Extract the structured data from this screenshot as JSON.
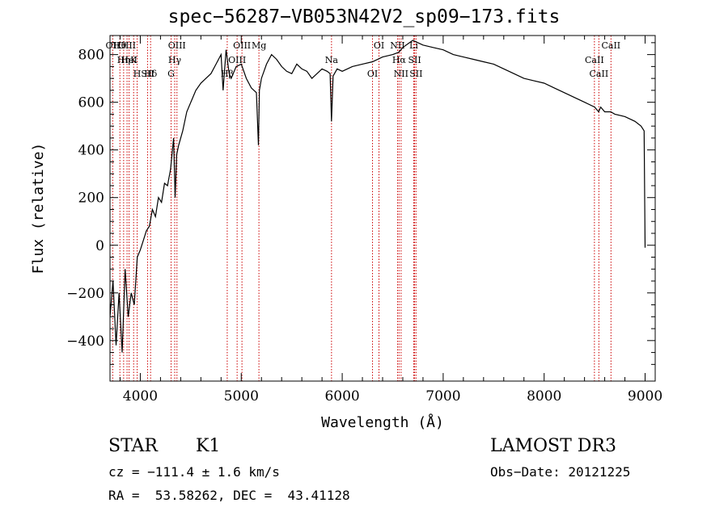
{
  "chart_data": {
    "type": "line",
    "title": "spec−56287−VB053N42V2_sp09−173.fits",
    "xlabel": "Wavelength (Å)",
    "ylabel": "Flux (relative)",
    "xlim": [
      3700,
      9100
    ],
    "ylim": [
      -570,
      880
    ],
    "grid": false,
    "x_ticks": [
      "4000",
      "5000",
      "6000",
      "7000",
      "8000",
      "9000"
    ],
    "x_tick_values": [
      4000,
      5000,
      6000,
      7000,
      8000,
      9000
    ],
    "y_ticks": [
      "−400",
      "−200",
      "0",
      "200",
      "400",
      "600",
      "800"
    ],
    "y_tick_values": [
      -400,
      -200,
      0,
      200,
      400,
      600,
      800
    ],
    "series": [
      {
        "color": "#000000",
        "x": [
          3700,
          3730,
          3760,
          3790,
          3820,
          3850,
          3880,
          3910,
          3940,
          3970,
          4000,
          4030,
          4060,
          4090,
          4120,
          4150,
          4180,
          4210,
          4240,
          4270,
          4300,
          4330,
          4345,
          4360,
          4380,
          4420,
          4460,
          4500,
          4550,
          4600,
          4650,
          4700,
          4750,
          4800,
          4820,
          4850,
          4880,
          4900,
          4950,
          5000,
          5050,
          5100,
          5150,
          5170,
          5180,
          5200,
          5250,
          5300,
          5350,
          5400,
          5450,
          5500,
          5550,
          5600,
          5650,
          5700,
          5750,
          5800,
          5850,
          5880,
          5894,
          5910,
          5950,
          6000,
          6100,
          6200,
          6300,
          6400,
          6500,
          6560,
          6600,
          6700,
          6800,
          6900,
          7000,
          7100,
          7200,
          7300,
          7400,
          7500,
          7600,
          7700,
          7800,
          7900,
          8000,
          8100,
          8200,
          8300,
          8400,
          8500,
          8540,
          8560,
          8600,
          8660,
          8700,
          8800,
          8900,
          8960,
          8990,
          9000
        ],
        "y": [
          -300,
          -150,
          -420,
          -200,
          -450,
          -100,
          -300,
          -200,
          -250,
          -50,
          -20,
          20,
          60,
          80,
          150,
          120,
          200,
          180,
          260,
          250,
          320,
          450,
          200,
          380,
          420,
          480,
          560,
          600,
          650,
          680,
          700,
          720,
          760,
          800,
          650,
          820,
          720,
          700,
          750,
          760,
          700,
          660,
          640,
          420,
          650,
          700,
          760,
          800,
          780,
          750,
          730,
          720,
          760,
          740,
          730,
          700,
          720,
          740,
          730,
          720,
          520,
          710,
          740,
          730,
          750,
          760,
          770,
          790,
          800,
          810,
          830,
          860,
          840,
          830,
          820,
          800,
          790,
          780,
          770,
          760,
          740,
          720,
          700,
          690,
          680,
          660,
          640,
          620,
          600,
          580,
          560,
          580,
          560,
          560,
          550,
          540,
          520,
          500,
          480,
          -10
        ]
      }
    ],
    "line_markers": [
      {
        "label": "Hθ",
        "wavelength": 3798
      },
      {
        "label": "K",
        "wavelength": 3934
      },
      {
        "label": "Hδ",
        "wavelength": 4102
      },
      {
        "label": "OII",
        "wavelength": 3727
      },
      {
        "label": "HeI",
        "wavelength": 3889
      },
      {
        "label": "SII",
        "wavelength": 4072
      },
      {
        "label": "OIII",
        "wavelength": 3869
      },
      {
        "label": "Hη",
        "wavelength": 3835
      },
      {
        "label": "H",
        "wavelength": 3969
      },
      {
        "label": "OIII",
        "wavelength": 4363
      },
      {
        "label": "Hγ",
        "wavelength": 4341
      },
      {
        "label": "G",
        "wavelength": 4305
      },
      {
        "label": "OIII",
        "wavelength": 5007
      },
      {
        "label": "OIII",
        "wavelength": 4959
      },
      {
        "label": "Hβ",
        "wavelength": 4861
      },
      {
        "label": "Mg",
        "wavelength": 5175
      },
      {
        "label": "Na",
        "wavelength": 5894
      },
      {
        "label": "OI",
        "wavelength": 6300
      },
      {
        "label": "OI",
        "wavelength": 6364
      },
      {
        "label": "Hα",
        "wavelength": 6563
      },
      {
        "label": "NII",
        "wavelength": 6583
      },
      {
        "label": "NII",
        "wavelength": 6548
      },
      {
        "label": "SII",
        "wavelength": 6717
      },
      {
        "label": "SII",
        "wavelength": 6731
      },
      {
        "label": "Li",
        "wavelength": 6708
      },
      {
        "label": "CaII",
        "wavelength": 8498
      },
      {
        "label": "CaII",
        "wavelength": 8542
      },
      {
        "label": "CaII",
        "wavelength": 8662
      }
    ]
  },
  "info": {
    "class": "STAR",
    "subclass": "K1",
    "survey": "LAMOST DR3",
    "cz": "cz = −111.4 ± 1.6 km/s",
    "obs_date": "Obs−Date: 20121225",
    "coords": "RA =  53.58262, DEC =  43.41128"
  }
}
